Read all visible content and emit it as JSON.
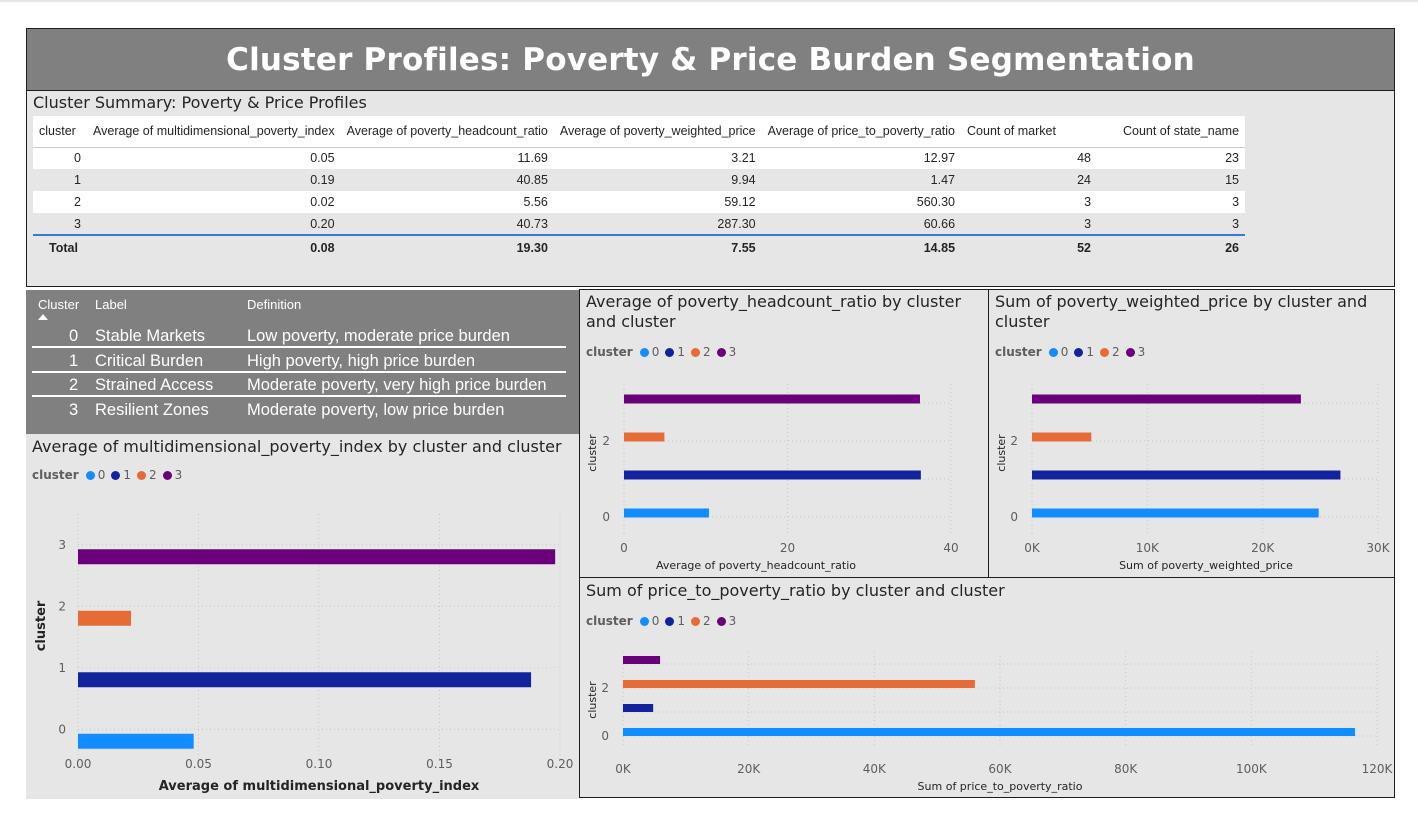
{
  "header": {
    "title": "Cluster Profiles: Poverty & Price Burden Segmentation"
  },
  "summary": {
    "title": "Cluster Summary: Poverty & Price Profiles",
    "columns": [
      "cluster",
      "Average of multidimensional_poverty_index",
      "Average of poverty_headcount_ratio",
      "Average of poverty_weighted_price",
      "Average of price_to_poverty_ratio",
      "Count of market",
      "Count of state_name"
    ],
    "rows": [
      [
        "0",
        "0.05",
        "11.69",
        "3.21",
        "12.97",
        "48",
        "23"
      ],
      [
        "1",
        "0.19",
        "40.85",
        "9.94",
        "1.47",
        "24",
        "15"
      ],
      [
        "2",
        "0.02",
        "5.56",
        "59.12",
        "560.30",
        "3",
        "3"
      ],
      [
        "3",
        "0.20",
        "40.73",
        "287.30",
        "60.66",
        "3",
        "3"
      ]
    ],
    "total": [
      "Total",
      "0.08",
      "19.30",
      "7.55",
      "14.85",
      "52",
      "26"
    ]
  },
  "cluster_labels": {
    "headers": [
      "Cluster",
      "Label",
      "Definition"
    ],
    "rows": [
      {
        "cluster": "0",
        "label": "Stable Markets",
        "definition": "Low poverty, moderate price burden"
      },
      {
        "cluster": "1",
        "label": "Critical Burden",
        "definition": "High poverty, high price burden"
      },
      {
        "cluster": "2",
        "label": "Strained Access",
        "definition": "Moderate poverty, very high price burden"
      },
      {
        "cluster": "3",
        "label": "Resilient Zones",
        "definition": "Moderate poverty, low price burden"
      }
    ]
  },
  "colors": {
    "c0": "#118dff",
    "c1": "#12239e",
    "c2": "#e66c37",
    "c3": "#6b007b"
  },
  "legend": {
    "title": "cluster",
    "items": [
      "0",
      "1",
      "2",
      "3"
    ]
  },
  "chart_data": [
    {
      "id": "mpi",
      "type": "bar",
      "orientation": "horizontal",
      "title": "Average of multidimensional_poverty_index by cluster and cluster",
      "xlabel": "Average of multidimensional_poverty_index",
      "ylabel": "cluster",
      "categories": [
        "0",
        "1",
        "2",
        "3"
      ],
      "values": [
        0.048,
        0.188,
        0.022,
        0.198
      ],
      "xlim": [
        0,
        0.2
      ],
      "xticks": [
        "0.00",
        "0.05",
        "0.10",
        "0.15",
        "0.20"
      ],
      "yticks": [
        "0",
        "1",
        "2",
        "3"
      ],
      "grid": true
    },
    {
      "id": "headcount",
      "type": "bar",
      "orientation": "horizontal",
      "title": "Average of poverty_headcount_ratio by cluster and cluster",
      "xlabel": "Average of poverty_headcount_ratio",
      "ylabel": "cluster",
      "categories": [
        "0",
        "1",
        "2",
        "3"
      ],
      "values": [
        11.69,
        40.85,
        5.56,
        40.73
      ],
      "xlim": [
        0,
        45
      ],
      "xticks": [
        "0",
        "20",
        "40"
      ],
      "yticks": [
        "0",
        "2"
      ],
      "grid": true
    },
    {
      "id": "weighted",
      "type": "bar",
      "orientation": "horizontal",
      "title": "Sum of poverty_weighted_price by cluster and cluster",
      "xlabel": "Sum of poverty_weighted_price",
      "ylabel": "cluster",
      "categories": [
        "0",
        "1",
        "2",
        "3"
      ],
      "values": [
        29000,
        31200,
        6000,
        27200
      ],
      "xlim": [
        0,
        35000
      ],
      "xticks": [
        "0K",
        "10K",
        "20K",
        "30K"
      ],
      "yticks": [
        "0",
        "2"
      ],
      "grid": true
    },
    {
      "id": "ratio",
      "type": "bar",
      "orientation": "horizontal",
      "title": "Sum of price_to_poverty_ratio by cluster and cluster",
      "xlabel": "Sum of price_to_poverty_ratio",
      "ylabel": "cluster",
      "categories": [
        "0",
        "1",
        "2",
        "3"
      ],
      "values": [
        116500,
        4800,
        56000,
        5900
      ],
      "xlim": [
        0,
        120000
      ],
      "xticks": [
        "0K",
        "20K",
        "40K",
        "60K",
        "80K",
        "100K",
        "120K"
      ],
      "yticks": [
        "0",
        "2"
      ],
      "grid": true
    }
  ]
}
